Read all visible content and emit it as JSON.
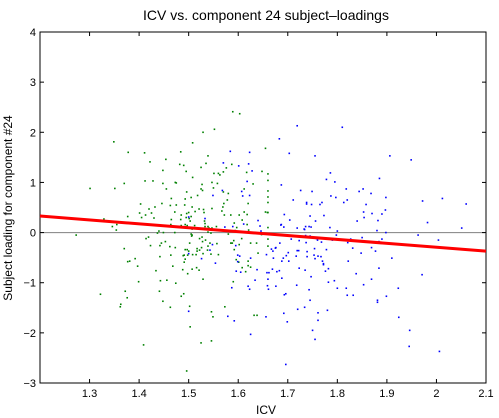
{
  "chart_data": {
    "type": "scatter",
    "title": "ICV vs. component 24 subject–loadings",
    "xlabel": "ICV",
    "ylabel": "Subject loading for component #24",
    "xlim": [
      1.2,
      2.1
    ],
    "ylim": [
      -3,
      4
    ],
    "xticks": [
      "1.3",
      "1.4",
      "1.5",
      "1.6",
      "1.7",
      "1.8",
      "1.9",
      "2",
      "2.1"
    ],
    "yticks": [
      "−3",
      "−2",
      "−1",
      "0",
      "1",
      "2",
      "3",
      "4"
    ],
    "xtick_values": [
      1.3,
      1.4,
      1.5,
      1.6,
      1.7,
      1.8,
      1.9,
      2.0,
      2.1
    ],
    "ytick_values": [
      -3,
      -2,
      -1,
      0,
      1,
      2,
      3,
      4
    ],
    "grid": false,
    "legend": "none",
    "zero_line": {
      "y": 0,
      "color": "#808080"
    },
    "fit_line": {
      "x": [
        1.2,
        2.1
      ],
      "y": [
        0.33,
        -0.37
      ],
      "color": "#ff0000"
    },
    "series": [
      {
        "color": "#008000",
        "points": []
      },
      {
        "color": "#0000ff",
        "points": []
      }
    ],
    "distribution": {
      "note_omitted": true
    }
  }
}
